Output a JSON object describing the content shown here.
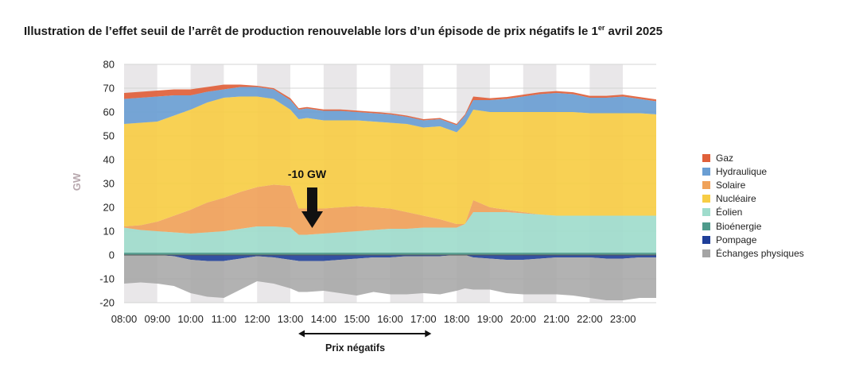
{
  "title": "Illustration de l’effet seuil de l’arrêt de production renouvelable lors d’un épisode de prix négatifs le 1",
  "title_sup": "er",
  "title_end": " avril 2025",
  "annotation": "-10 GW",
  "prix_label": "Prix négatifs",
  "colors": {
    "gaz": "#e0603a",
    "hydraulique": "#6a9ed3",
    "solaire": "#f0a25a",
    "nucleaire": "#f7cd45",
    "eolien": "#9fdccc",
    "bioenergie": "#4f9b8c",
    "pompage": "#1f3f99",
    "echanges": "#a4a4a4"
  },
  "chart_data": {
    "type": "area",
    "title": "Illustration de l’effet seuil de l’arrêt de production renouvelable lors d’un épisode de prix négatifs le 1er avril 2025",
    "ylabel": "GW",
    "xlabel": "",
    "ylim": [
      -20,
      80
    ],
    "yticks": [
      -20,
      -10,
      0,
      10,
      20,
      30,
      40,
      50,
      60,
      70,
      80
    ],
    "xlim": [
      8.0,
      24.0
    ],
    "xticks": [
      "08:00",
      "09:00",
      "10:00",
      "11:00",
      "12:00",
      "13:00",
      "14:00",
      "15:00",
      "16:00",
      "17:00",
      "18:00",
      "19:00",
      "20:00",
      "21:00",
      "22:00",
      "23:00"
    ],
    "negative_price_window": [
      "13:00",
      "17:00"
    ],
    "legend": [
      "Gaz",
      "Hydraulique",
      "Solaire",
      "Nucléaire",
      "Éolien",
      "Bioénergie",
      "Pompage",
      "Échanges physiques"
    ],
    "x": [
      8.0,
      8.5,
      9.0,
      9.5,
      10.0,
      10.5,
      11.0,
      11.5,
      12.0,
      12.5,
      13.0,
      13.25,
      13.5,
      14.0,
      14.5,
      15.0,
      15.5,
      16.0,
      16.5,
      17.0,
      17.5,
      18.0,
      18.25,
      18.5,
      19.0,
      19.5,
      20.0,
      20.5,
      21.0,
      21.5,
      22.0,
      22.5,
      23.0,
      23.5,
      24.0
    ],
    "series": [
      {
        "name": "Bioénergie",
        "values": [
          1,
          1,
          1,
          1,
          1,
          1,
          1,
          1,
          1,
          1,
          1,
          1,
          1,
          1,
          1,
          1,
          1,
          1,
          1,
          1,
          1,
          1,
          1,
          1,
          1,
          1,
          1,
          1,
          1,
          1,
          1,
          1,
          1,
          1,
          1
        ]
      },
      {
        "name": "Éolien",
        "values": [
          10.5,
          9.5,
          9,
          8.5,
          8,
          8.5,
          9,
          10,
          11,
          11,
          10.5,
          7.5,
          7.5,
          8,
          8.5,
          9,
          9.5,
          10,
          10,
          10.5,
          10.5,
          10.5,
          12,
          17,
          17,
          17,
          16.5,
          16,
          15.5,
          15.5,
          15.5,
          15.5,
          15.5,
          15.5,
          15.5
        ]
      },
      {
        "name": "Solaire",
        "values": [
          0.5,
          2,
          4,
          7,
          10,
          12.5,
          14,
          15.5,
          16.5,
          17.5,
          17.5,
          11,
          11,
          10.5,
          10.5,
          10.5,
          9.5,
          8.5,
          7,
          5,
          3.5,
          1.5,
          0,
          5,
          2,
          1,
          0.5,
          0,
          0,
          0,
          0,
          0,
          0,
          0,
          0
        ]
      },
      {
        "name": "Nucléaire",
        "values": [
          43,
          43,
          42,
          42,
          42,
          42,
          42,
          40,
          38,
          36,
          32,
          37.5,
          38,
          37,
          36.5,
          36,
          36,
          36,
          37,
          37,
          39,
          38.5,
          42,
          38,
          40,
          41,
          42,
          43,
          43.5,
          43.5,
          43,
          43,
          43,
          43,
          42.5
        ]
      },
      {
        "name": "Hydraulique",
        "values": [
          10.5,
          10.5,
          10.5,
          8.5,
          6,
          4.5,
          3.5,
          4,
          4,
          4,
          4,
          4,
          4,
          4,
          4,
          3.5,
          3.5,
          3.5,
          3,
          3,
          3,
          3,
          3.5,
          4,
          5,
          5.5,
          6.5,
          7.5,
          8,
          7.5,
          6.5,
          6.5,
          7,
          6,
          5.5
        ]
      },
      {
        "name": "Gaz",
        "values": [
          2.5,
          2.5,
          2.5,
          2.5,
          2.5,
          2.0,
          2.0,
          1.0,
          0.5,
          0.5,
          0.8,
          0.6,
          0.6,
          0.6,
          0.6,
          0.6,
          0.6,
          0.5,
          0.5,
          0.5,
          0.5,
          0.5,
          0.5,
          1.5,
          0.8,
          0.8,
          0.8,
          0.8,
          0.8,
          0.8,
          0.8,
          0.8,
          0.8,
          0.8,
          0.8
        ]
      },
      {
        "name": "Pompage",
        "values": [
          0,
          0,
          0,
          -0.5,
          -2,
          -2.5,
          -2.5,
          -1.5,
          -0.5,
          -1,
          -2,
          -2.5,
          -2.5,
          -2.5,
          -2,
          -1.5,
          -1,
          -1,
          -0.5,
          -0.5,
          -0.5,
          0,
          0,
          -1,
          -1.5,
          -2,
          -2,
          -1.5,
          -1,
          -1,
          -1,
          -1.5,
          -1.5,
          -1,
          -1
        ]
      },
      {
        "name": "Échanges physiques",
        "values": [
          -12,
          -11.5,
          -12,
          -12.5,
          -14,
          -15,
          -15.5,
          -13,
          -10.5,
          -11,
          -12,
          -13,
          -13,
          -12.5,
          -14,
          -15.5,
          -14.5,
          -15.5,
          -16,
          -15.5,
          -16,
          -15,
          -14,
          -13.5,
          -13,
          -14,
          -14.5,
          -15,
          -15.5,
          -16,
          -17,
          -17.5,
          -17.5,
          -17,
          -17
        ]
      }
    ]
  }
}
